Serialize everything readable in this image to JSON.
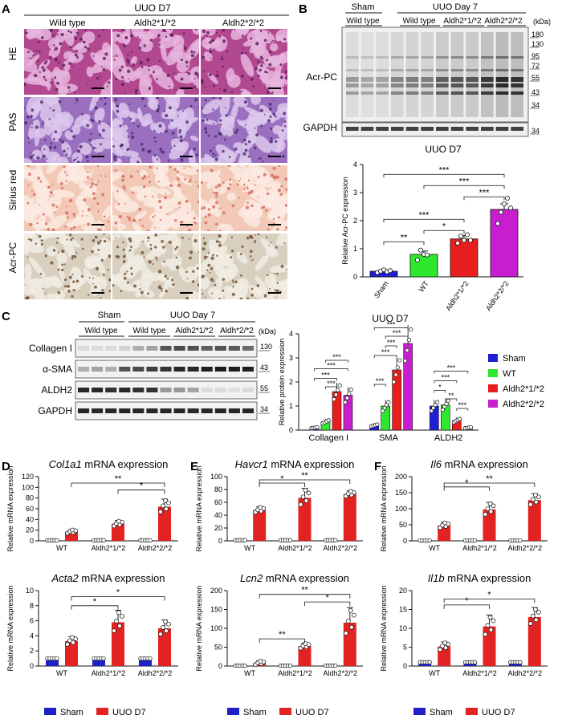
{
  "colors": {
    "sham": "#1f1fd6",
    "wt": "#2ee82e",
    "het": "#e81d1d",
    "hom": "#c71fd0",
    "bar_red": "#e32222",
    "bar_blue": "#2020c8"
  },
  "panelA": {
    "letter": "A",
    "title": "UUO D7",
    "columns": [
      "Wild type",
      "Aldh2*1/*2",
      "Aldh2*2/*2"
    ],
    "rows": [
      {
        "label": "HE",
        "base": "#b2488f",
        "light": "#e6b5dd",
        "dark": "#5a1a5e"
      },
      {
        "label": "PAS",
        "base": "#9a6fbf",
        "light": "#dcc7ec",
        "dark": "#4b2d72"
      },
      {
        "label": "Sirius red",
        "base": "#f2c9b7",
        "light": "#fbeae2",
        "dark": "#d66a5a"
      },
      {
        "label": "Acr-PC",
        "base": "#d8cfbf",
        "light": "#f1ece2",
        "dark": "#6f4a2b"
      }
    ]
  },
  "panelB": {
    "letter": "B",
    "blot": {
      "group_sham": "Sham",
      "group_uuo": "UUO Day 7",
      "sub_sham": "Wild type",
      "subs": [
        "Wild type",
        "Aldh2*1/*2",
        "Aldh2*2/*2"
      ],
      "row_labels": [
        "Acr-PC",
        "GAPDH"
      ],
      "kda_label": "(kDa)",
      "kda": [
        "180",
        "130",
        "95",
        "72",
        "55",
        "43",
        "34"
      ],
      "gapdh_kda": "34"
    },
    "chart_data": {
      "type": "bar",
      "title": "UUO D7",
      "ylabel": "Relative Acr-PC expression",
      "categories": [
        "Sham",
        "WT",
        "Aldh2*1/*2",
        "Aldh2*2/*2"
      ],
      "values": [
        0.2,
        0.8,
        1.35,
        2.4
      ],
      "errors": [
        0.05,
        0.12,
        0.12,
        0.2
      ],
      "points": [
        [
          0.15,
          0.2,
          0.25,
          0.18,
          0.22
        ],
        [
          0.6,
          0.95,
          0.8,
          0.78
        ],
        [
          1.2,
          1.45,
          1.3,
          1.5,
          1.3
        ],
        [
          1.9,
          2.3,
          2.6,
          2.8,
          2.45
        ]
      ],
      "ylim": [
        0,
        4
      ],
      "yticks": [
        0,
        1,
        2,
        3,
        4
      ],
      "significance": [
        {
          "from": 0,
          "to": 1,
          "label": "**"
        },
        {
          "from": 1,
          "to": 2,
          "label": "*"
        },
        {
          "from": 0,
          "to": 2,
          "label": "***"
        },
        {
          "from": 2,
          "to": 3,
          "label": "***"
        },
        {
          "from": 1,
          "to": 3,
          "label": "***"
        },
        {
          "from": 0,
          "to": 3,
          "label": "***"
        }
      ]
    }
  },
  "panelC": {
    "letter": "C",
    "blot": {
      "group_sham": "Sham",
      "group_uuo": "UUO Day 7",
      "sub_sham": "Wild type",
      "subs": [
        "Wild type",
        "Aldh2*1/*2",
        "Aldh*2/*2"
      ],
      "row_labels": [
        "Collagen I",
        "α-SMA",
        "ALDH2",
        "GAPDH"
      ],
      "kda_label": "(kDa)",
      "kda": [
        "130",
        "43",
        "55",
        "34"
      ]
    },
    "chart_data": {
      "type": "bar",
      "title": "UUO D7",
      "ylabel": "Relative protein expression",
      "categories": [
        "Collagen I",
        "SMA",
        "ALDH2"
      ],
      "series": [
        {
          "name": "Sham",
          "values": [
            0.1,
            0.2,
            1.0
          ]
        },
        {
          "name": "WT",
          "values": [
            0.35,
            1.0,
            1.05
          ]
        },
        {
          "name": "Aldh2*1/*2",
          "values": [
            1.6,
            2.5,
            0.4
          ]
        },
        {
          "name": "Aldh2*2/*2",
          "values": [
            1.45,
            3.6,
            0.1
          ]
        }
      ],
      "ylim": [
        0,
        4
      ],
      "yticks": [
        0,
        1,
        2,
        3,
        4
      ],
      "legend": "right",
      "significance": [
        {
          "group": 0,
          "from": 0,
          "to": 2,
          "label": "***",
          "y": 2.15
        },
        {
          "group": 0,
          "from": 0,
          "to": 3,
          "label": "***",
          "y": 2.55
        },
        {
          "group": 0,
          "from": 1,
          "to": 2,
          "label": "***",
          "y": 1.8
        },
        {
          "group": 0,
          "from": 1,
          "to": 3,
          "label": "***",
          "y": 2.9
        },
        {
          "group": 1,
          "from": 0,
          "to": 1,
          "label": "***",
          "y": 1.9
        },
        {
          "group": 1,
          "from": 0,
          "to": 2,
          "label": "***",
          "y": 3.1
        },
        {
          "group": 1,
          "from": 1,
          "to": 2,
          "label": "***",
          "y": 3.5
        },
        {
          "group": 1,
          "from": 1,
          "to": 3,
          "label": "***",
          "y": 3.9
        },
        {
          "group": 1,
          "from": 0,
          "to": 3,
          "label": "***",
          "y": 4.25
        },
        {
          "group": 2,
          "from": 0,
          "to": 1,
          "label": "*",
          "y": 1.65
        },
        {
          "group": 2,
          "from": 1,
          "to": 2,
          "label": "**",
          "y": 1.3
        },
        {
          "group": 2,
          "from": 2,
          "to": 3,
          "label": "***",
          "y": 0.9
        },
        {
          "group": 2,
          "from": 0,
          "to": 2,
          "label": "***",
          "y": 2.05
        },
        {
          "group": 2,
          "from": 0,
          "to": 3,
          "label": "***",
          "y": 2.45
        }
      ]
    }
  },
  "lower_legend": {
    "sham": "Sham",
    "uuo": "UUO D7"
  },
  "mrna": {
    "ylabel": "Relative mRNA expression",
    "categories": [
      "WT",
      "Aldh2*1/*2",
      "Aldh2*2/*2"
    ],
    "suffix": " mRNA expression",
    "charts": [
      {
        "letter": "D",
        "gene": "Col1a1",
        "ylim": [
          0,
          120
        ],
        "yticks": [
          0,
          20,
          40,
          60,
          80,
          100,
          120
        ],
        "sham": [
          1,
          1,
          1
        ],
        "uuo": [
          17,
          32,
          64
        ],
        "err": [
          4,
          6,
          14
        ],
        "sig": [
          {
            "from": 0,
            "to": 2,
            "label": "**",
            "y": 108
          },
          {
            "from": 1,
            "to": 2,
            "label": "*",
            "y": 95
          }
        ]
      },
      {
        "letter": "E",
        "gene": "Havcr1",
        "ylim": [
          0,
          100
        ],
        "yticks": [
          0,
          20,
          40,
          60,
          80,
          100
        ],
        "sham": [
          1,
          1,
          1
        ],
        "uuo": [
          48,
          67,
          73
        ],
        "err": [
          5,
          15,
          5
        ],
        "sig": [
          {
            "from": 0,
            "to": 2,
            "label": "**",
            "y": 95
          },
          {
            "from": 0,
            "to": 1,
            "label": "*",
            "y": 90
          }
        ]
      },
      {
        "letter": "F",
        "gene": "Il6",
        "ylim": [
          0,
          200
        ],
        "yticks": [
          0,
          50,
          100,
          150,
          200
        ],
        "sham": [
          1,
          1,
          1
        ],
        "uuo": [
          48,
          98,
          127
        ],
        "err": [
          10,
          22,
          20
        ],
        "sig": [
          {
            "from": 0,
            "to": 2,
            "label": "**",
            "y": 180
          },
          {
            "from": 0,
            "to": 1,
            "label": "*",
            "y": 168
          }
        ]
      },
      {
        "letter": "",
        "gene": "Acta2",
        "ylim": [
          0,
          10
        ],
        "yticks": [
          0,
          2,
          4,
          6,
          8,
          10
        ],
        "sham": [
          1,
          1,
          1
        ],
        "uuo": [
          3.3,
          5.8,
          5.0
        ],
        "err": [
          0.6,
          1.6,
          1.1
        ],
        "sig": [
          {
            "from": 0,
            "to": 2,
            "label": "*",
            "y": 9.2
          },
          {
            "from": 0,
            "to": 1,
            "label": "*",
            "y": 8.0
          }
        ]
      },
      {
        "letter": "",
        "gene": "Lcn2",
        "ylim": [
          0,
          200
        ],
        "yticks": [
          0,
          50,
          100,
          150,
          200
        ],
        "sham": [
          1,
          1,
          1
        ],
        "uuo": [
          8,
          53,
          115
        ],
        "err": [
          6,
          8,
          40
        ],
        "sig": [
          {
            "from": 0,
            "to": 2,
            "label": "**",
            "y": 190
          },
          {
            "from": 1,
            "to": 2,
            "label": "*",
            "y": 170
          },
          {
            "from": 0,
            "to": 1,
            "label": "**",
            "y": 72
          }
        ]
      },
      {
        "letter": "",
        "gene": "Il1b",
        "ylim": [
          0,
          20
        ],
        "yticks": [
          0,
          5,
          10,
          15,
          20
        ],
        "sham": [
          1,
          1,
          1
        ],
        "uuo": [
          5.2,
          10.5,
          13
        ],
        "err": [
          1.2,
          3,
          2.5
        ],
        "sig": [
          {
            "from": 0,
            "to": 2,
            "label": "*",
            "y": 17.8
          },
          {
            "from": 0,
            "to": 1,
            "label": "*",
            "y": 16.2
          }
        ]
      }
    ]
  }
}
